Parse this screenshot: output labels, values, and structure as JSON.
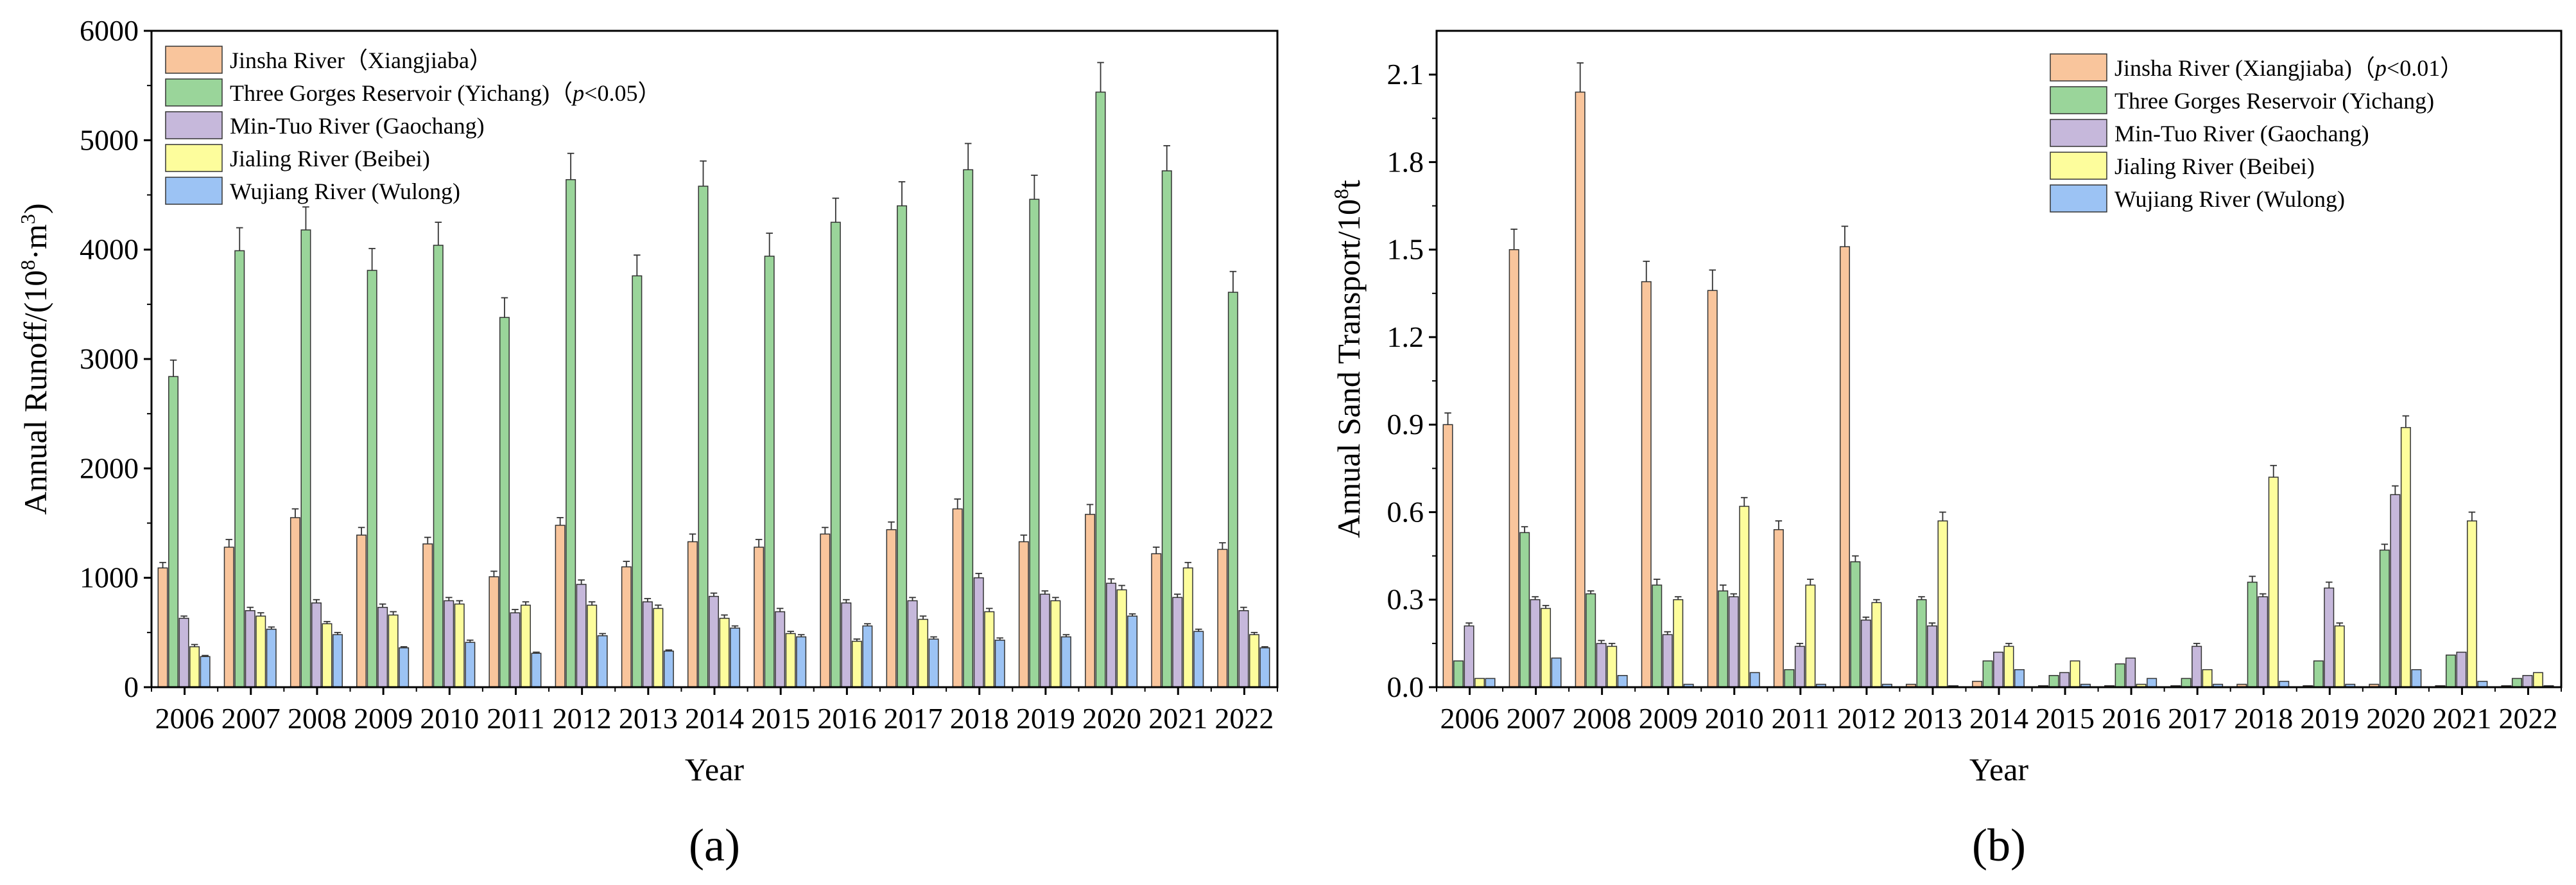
{
  "figure": {
    "panel_a_label": "(a)",
    "panel_b_label": "(b)"
  },
  "chart_data": [
    {
      "type": "bar",
      "panel": "a",
      "xlabel": "Year",
      "ylabel": "Annual Runoff/(10⁸·m³)",
      "ylim": [
        0,
        6000
      ],
      "yticks": [
        "0",
        "1000",
        "2000",
        "3000",
        "4000",
        "5000",
        "6000"
      ],
      "grid": false,
      "legend_position": "top-left",
      "categories": [
        "2006",
        "2007",
        "2008",
        "2009",
        "2010",
        "2011",
        "2012",
        "2013",
        "2014",
        "2015",
        "2016",
        "2017",
        "2018",
        "2019",
        "2020",
        "2021",
        "2022"
      ],
      "series": [
        {
          "name": "Jinsha River（Xiangjiaba）",
          "color": "#f9c59c",
          "values": [
            1090,
            1280,
            1550,
            1390,
            1310,
            1010,
            1480,
            1100,
            1330,
            1280,
            1400,
            1440,
            1630,
            1330,
            1580,
            1220,
            1260
          ],
          "errors": [
            50,
            70,
            80,
            70,
            60,
            50,
            70,
            50,
            70,
            70,
            60,
            70,
            90,
            60,
            90,
            60,
            60
          ]
        },
        {
          "name": "Three Gorges Reservoir (Yichang)（p<0.05）",
          "color": "#9ad59a",
          "values": [
            2840,
            3990,
            4180,
            3810,
            4040,
            3380,
            4640,
            3760,
            4580,
            3940,
            4250,
            4400,
            4730,
            4460,
            5440,
            4720,
            3610
          ],
          "errors": [
            150,
            210,
            210,
            200,
            210,
            180,
            240,
            190,
            230,
            210,
            220,
            220,
            240,
            220,
            270,
            230,
            190
          ]
        },
        {
          "name": "Min-Tuo River (Gaochang)",
          "color": "#c6b8db",
          "values": [
            630,
            700,
            770,
            730,
            790,
            680,
            940,
            780,
            830,
            690,
            770,
            790,
            1000,
            850,
            950,
            820,
            700
          ],
          "errors": [
            20,
            30,
            30,
            30,
            30,
            30,
            40,
            30,
            30,
            30,
            30,
            30,
            40,
            30,
            40,
            30,
            30
          ]
        },
        {
          "name": "Jialing River (Beibei)",
          "color": "#fdfd9c",
          "values": [
            370,
            650,
            580,
            660,
            760,
            750,
            750,
            720,
            630,
            490,
            420,
            620,
            690,
            790,
            890,
            1090,
            480
          ],
          "errors": [
            20,
            30,
            20,
            30,
            30,
            30,
            30,
            30,
            30,
            20,
            20,
            30,
            30,
            30,
            40,
            50,
            20
          ]
        },
        {
          "name": "Wujiang River (Wulong)",
          "color": "#9cc3f4",
          "values": [
            280,
            530,
            480,
            360,
            410,
            310,
            470,
            330,
            540,
            460,
            560,
            440,
            430,
            460,
            650,
            510,
            360
          ],
          "errors": [
            10,
            20,
            20,
            10,
            20,
            10,
            20,
            10,
            20,
            20,
            20,
            20,
            20,
            20,
            20,
            20,
            10
          ]
        }
      ]
    },
    {
      "type": "bar",
      "panel": "b",
      "xlabel": "Year",
      "ylabel": "Annual Sand Transport/10⁸t",
      "ylim": [
        0,
        2.25
      ],
      "yticks": [
        "0.0",
        "0.3",
        "0.6",
        "0.9",
        "1.2",
        "1.5",
        "1.8",
        "2.1"
      ],
      "grid": false,
      "legend_position": "top-right",
      "categories": [
        "2006",
        "2007",
        "2008",
        "2009",
        "2010",
        "2011",
        "2012",
        "2013",
        "2014",
        "2015",
        "2016",
        "2017",
        "2018",
        "2019",
        "2020",
        "2021",
        "2022"
      ],
      "series": [
        {
          "name": "Jinsha River (Xiangjiaba)（p<0.01）",
          "color": "#f9c59c",
          "values": [
            0.9,
            1.5,
            2.04,
            1.39,
            1.36,
            0.54,
            1.51,
            0.01,
            0.02,
            0.005,
            0.005,
            0.005,
            0.01,
            0.005,
            0.01,
            0.005,
            0.005
          ],
          "errors": [
            0.04,
            0.07,
            0.1,
            0.07,
            0.07,
            0.03,
            0.07,
            0,
            0,
            0,
            0,
            0,
            0,
            0,
            0,
            0,
            0
          ]
        },
        {
          "name": "Three Gorges Reservoir (Yichang)",
          "color": "#9ad59a",
          "values": [
            0.09,
            0.53,
            0.32,
            0.35,
            0.33,
            0.06,
            0.43,
            0.3,
            0.09,
            0.04,
            0.08,
            0.03,
            0.36,
            0.09,
            0.47,
            0.11,
            0.03
          ],
          "errors": [
            0,
            0.02,
            0.01,
            0.02,
            0.02,
            0,
            0.02,
            0.01,
            0,
            0,
            0,
            0,
            0.02,
            0,
            0.02,
            0,
            0
          ]
        },
        {
          "name": "Min-Tuo River (Gaochang)",
          "color": "#c6b8db",
          "values": [
            0.21,
            0.3,
            0.15,
            0.18,
            0.31,
            0.14,
            0.23,
            0.21,
            0.12,
            0.05,
            0.1,
            0.14,
            0.31,
            0.34,
            0.66,
            0.12,
            0.04
          ],
          "errors": [
            0.01,
            0.01,
            0.01,
            0.01,
            0.01,
            0.01,
            0.01,
            0.01,
            0,
            0,
            0,
            0.01,
            0.01,
            0.02,
            0.03,
            0,
            0
          ]
        },
        {
          "name": "Jialing River (Beibei)",
          "color": "#fdfd9c",
          "values": [
            0.03,
            0.27,
            0.14,
            0.3,
            0.62,
            0.35,
            0.29,
            0.57,
            0.14,
            0.09,
            0.01,
            0.06,
            0.72,
            0.21,
            0.89,
            0.57,
            0.05
          ],
          "errors": [
            0,
            0.01,
            0.01,
            0.01,
            0.03,
            0.02,
            0.01,
            0.03,
            0.01,
            0,
            0,
            0,
            0.04,
            0.01,
            0.04,
            0.03,
            0
          ]
        },
        {
          "name": "Wujiang River (Wulong)",
          "color": "#9cc3f4",
          "values": [
            0.03,
            0.1,
            0.04,
            0.01,
            0.05,
            0.01,
            0.01,
            0.005,
            0.06,
            0.01,
            0.03,
            0.01,
            0.02,
            0.01,
            0.06,
            0.02,
            0.005
          ],
          "errors": [
            0,
            0,
            0,
            0,
            0,
            0,
            0,
            0,
            0,
            0,
            0,
            0,
            0,
            0,
            0,
            0,
            0
          ]
        }
      ]
    }
  ]
}
